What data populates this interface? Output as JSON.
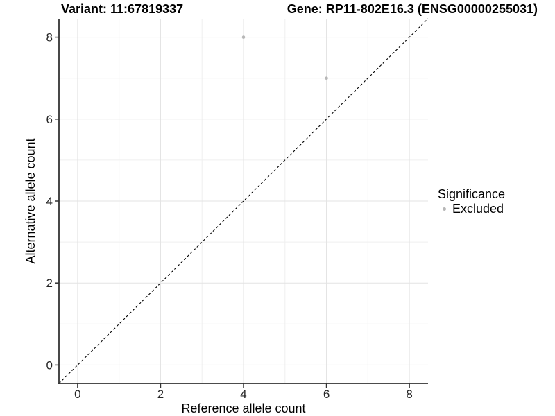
{
  "chart_data": {
    "type": "scatter",
    "title_left": "Variant: 11:67819337",
    "title_right": "Gene: RP11-802E16.3 (ENSG00000255031)",
    "xlabel": "Reference allele count",
    "ylabel": "Alternative allele count",
    "xlim": [
      -0.45,
      8.45
    ],
    "ylim": [
      -0.45,
      8.45
    ],
    "xticks": [
      0,
      2,
      4,
      6,
      8
    ],
    "yticks": [
      0,
      2,
      4,
      6,
      8
    ],
    "xticks_minor": [
      1,
      3,
      5,
      7
    ],
    "yticks_minor": [
      1,
      3,
      5,
      7
    ],
    "grid": "major+minor",
    "legend_position": "right",
    "identity_line": {
      "type": "abline",
      "slope": 1,
      "intercept": 0,
      "style": "dashed",
      "color": "#000000"
    },
    "series": [
      {
        "name": "Excluded",
        "color": "#b7b7b7",
        "points": [
          {
            "x": 4,
            "y": 8
          },
          {
            "x": 6,
            "y": 7
          }
        ]
      }
    ]
  },
  "legend": {
    "title": "Significance",
    "items": [
      {
        "label": "Excluded",
        "color": "#b7b7b7",
        "marker": "circle"
      }
    ]
  },
  "style": {
    "background": "#ffffff",
    "grid_major_color": "#e3e3e3",
    "grid_minor_color": "#efefef",
    "axis_color": "#333333",
    "tick_label_color": "#262626",
    "axis_title_color": "#000000",
    "point_color": "#b7b7b7"
  }
}
